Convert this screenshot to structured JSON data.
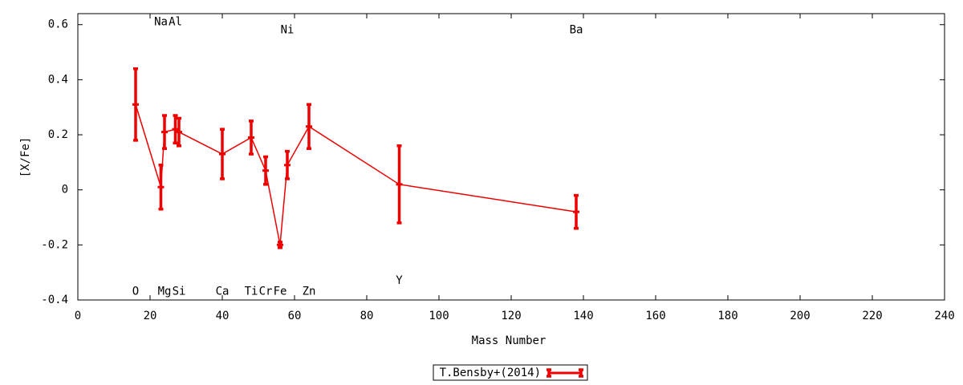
{
  "chart_data": {
    "type": "errorbar-line",
    "xlabel": "Mass Number",
    "ylabel": "[X/Fe]",
    "xlim": [
      0,
      240
    ],
    "ylim": [
      -0.4,
      0.64
    ],
    "xticks": [
      0,
      20,
      40,
      60,
      80,
      100,
      120,
      140,
      160,
      180,
      200,
      220,
      240
    ],
    "yticks": [
      -0.4,
      -0.2,
      0,
      0.2,
      0.4,
      0.6
    ],
    "legend": "bottom",
    "series": [
      {
        "name": "T.Bensby+(2014)",
        "color": "#ee0000",
        "x": [
          16,
          23,
          24,
          27,
          28,
          40,
          48,
          52,
          56,
          58,
          64,
          89,
          138
        ],
        "values": [
          0.31,
          0.01,
          0.21,
          0.22,
          0.21,
          0.13,
          0.19,
          0.07,
          -0.2,
          0.09,
          0.23,
          0.02,
          -0.08
        ],
        "errors": [
          0.13,
          0.08,
          0.06,
          0.05,
          0.05,
          0.09,
          0.06,
          0.05,
          0.01,
          0.05,
          0.08,
          0.14,
          0.06
        ]
      }
    ],
    "annotations": [
      {
        "text": "O",
        "x": 16,
        "y": -0.37
      },
      {
        "text": "Na",
        "x": 23,
        "y": 0.61
      },
      {
        "text": "Mg",
        "x": 24,
        "y": -0.37
      },
      {
        "text": "Al",
        "x": 27,
        "y": 0.61
      },
      {
        "text": "Si",
        "x": 28,
        "y": -0.37
      },
      {
        "text": "Ca",
        "x": 40,
        "y": -0.37
      },
      {
        "text": "Ti",
        "x": 48,
        "y": -0.37
      },
      {
        "text": "Cr",
        "x": 52,
        "y": -0.37
      },
      {
        "text": "Fe",
        "x": 56,
        "y": -0.37
      },
      {
        "text": "Ni",
        "x": 58,
        "y": 0.58
      },
      {
        "text": "Zn",
        "x": 64,
        "y": -0.37
      },
      {
        "text": "Y",
        "x": 89,
        "y": -0.33
      },
      {
        "text": "Ba",
        "x": 138,
        "y": 0.58
      }
    ]
  }
}
